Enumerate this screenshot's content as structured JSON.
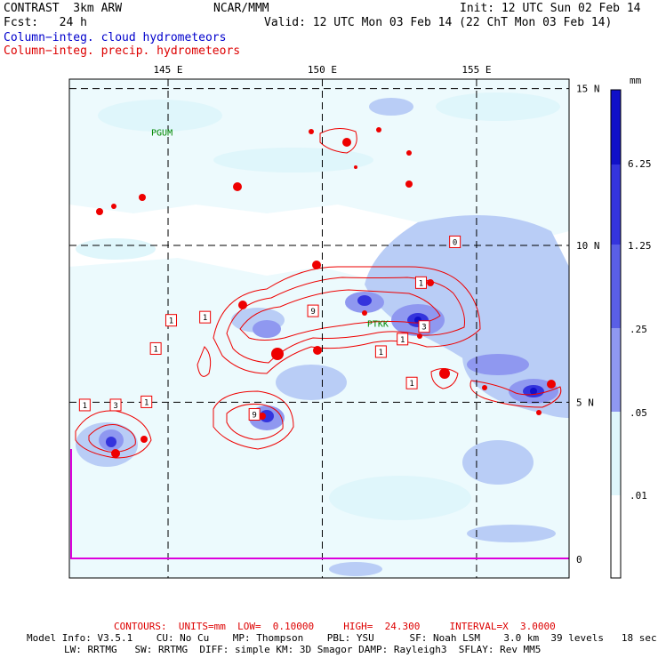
{
  "header": {
    "model": "CONTRAST  3km ARW",
    "center": "NCAR/MMM",
    "init": "Init: 12 UTC Sun 02 Feb 14",
    "fcst": "Fcst:   24 h",
    "valid": "Valid: 12 UTC Mon 03 Feb 14 (22 ChT Mon 03 Feb 14)",
    "field1": "Column−integ. cloud hydrometeors",
    "field2": "Column−integ. precip. hydrometeors"
  },
  "colors": {
    "cloud_1": "#dff6fb",
    "cloud_2": "#b9cdf6",
    "cloud_3": "#8f98f0",
    "cloud_4": "#5a5fe6",
    "cloud_5": "#3434dd",
    "cloud_6": "#1010c8",
    "precip_contour": "#ee0000",
    "station": "#008800",
    "boundary": "#dd00dd"
  },
  "chart_data": {
    "type": "heatmap",
    "xlim": [
      141.8,
      158.0
    ],
    "ylim": [
      -0.6,
      15.3
    ],
    "x_ticks": [
      145,
      150,
      155
    ],
    "x_tick_labels": [
      "145 E",
      "150 E",
      "155 E"
    ],
    "y_ticks": [
      0,
      5,
      10,
      15
    ],
    "y_tick_labels": [
      "0",
      "5 N",
      "10 N",
      "15 N"
    ],
    "legend_unit": "mm",
    "legend_levels": [
      ".01",
      ".05",
      ".25",
      "1.25",
      "6.25"
    ],
    "stations": [
      {
        "name": "PGUM",
        "lon": 144.8,
        "lat": 13.5
      },
      {
        "name": "PTKK",
        "lon": 151.8,
        "lat": 7.4
      }
    ],
    "contour_labels": [
      {
        "text": "1",
        "lon": 145.1,
        "lat": 7.6
      },
      {
        "text": "9",
        "lon": 149.7,
        "lat": 7.9
      },
      {
        "text": "1",
        "lon": 144.6,
        "lat": 6.7
      },
      {
        "text": "1",
        "lon": 152.6,
        "lat": 7.0
      },
      {
        "text": "1",
        "lon": 153.2,
        "lat": 8.8
      },
      {
        "text": "3",
        "lon": 153.3,
        "lat": 7.4
      },
      {
        "text": "1",
        "lon": 151.9,
        "lat": 6.6
      },
      {
        "text": "1",
        "lon": 152.9,
        "lat": 5.6
      },
      {
        "text": "1",
        "lon": 146.2,
        "lat": 7.7
      },
      {
        "text": "9",
        "lon": 147.8,
        "lat": 4.6
      },
      {
        "text": "3",
        "lon": 143.3,
        "lat": 4.9
      },
      {
        "text": "1",
        "lon": 144.3,
        "lat": 5.0
      },
      {
        "text": "1",
        "lon": 142.3,
        "lat": 4.9
      },
      {
        "text": "0",
        "lon": 154.3,
        "lat": 10.1
      }
    ]
  },
  "footer": {
    "contours": "CONTOURS:  UNITS=mm  LOW=  0.10000     HIGH=  24.300     INTERVAL=X  3.0000",
    "info1": "Model Info: V3.5.1    CU: No Cu    MP: Thompson    PBL: YSU      SF: Noah LSM    3.0 km  39 levels   18 sec",
    "info2": "LW: RRTMG   SW: RRTMG  DIFF: simple KM: 3D Smagor DAMP: Rayleigh3  SFLAY: Rev MM5"
  }
}
